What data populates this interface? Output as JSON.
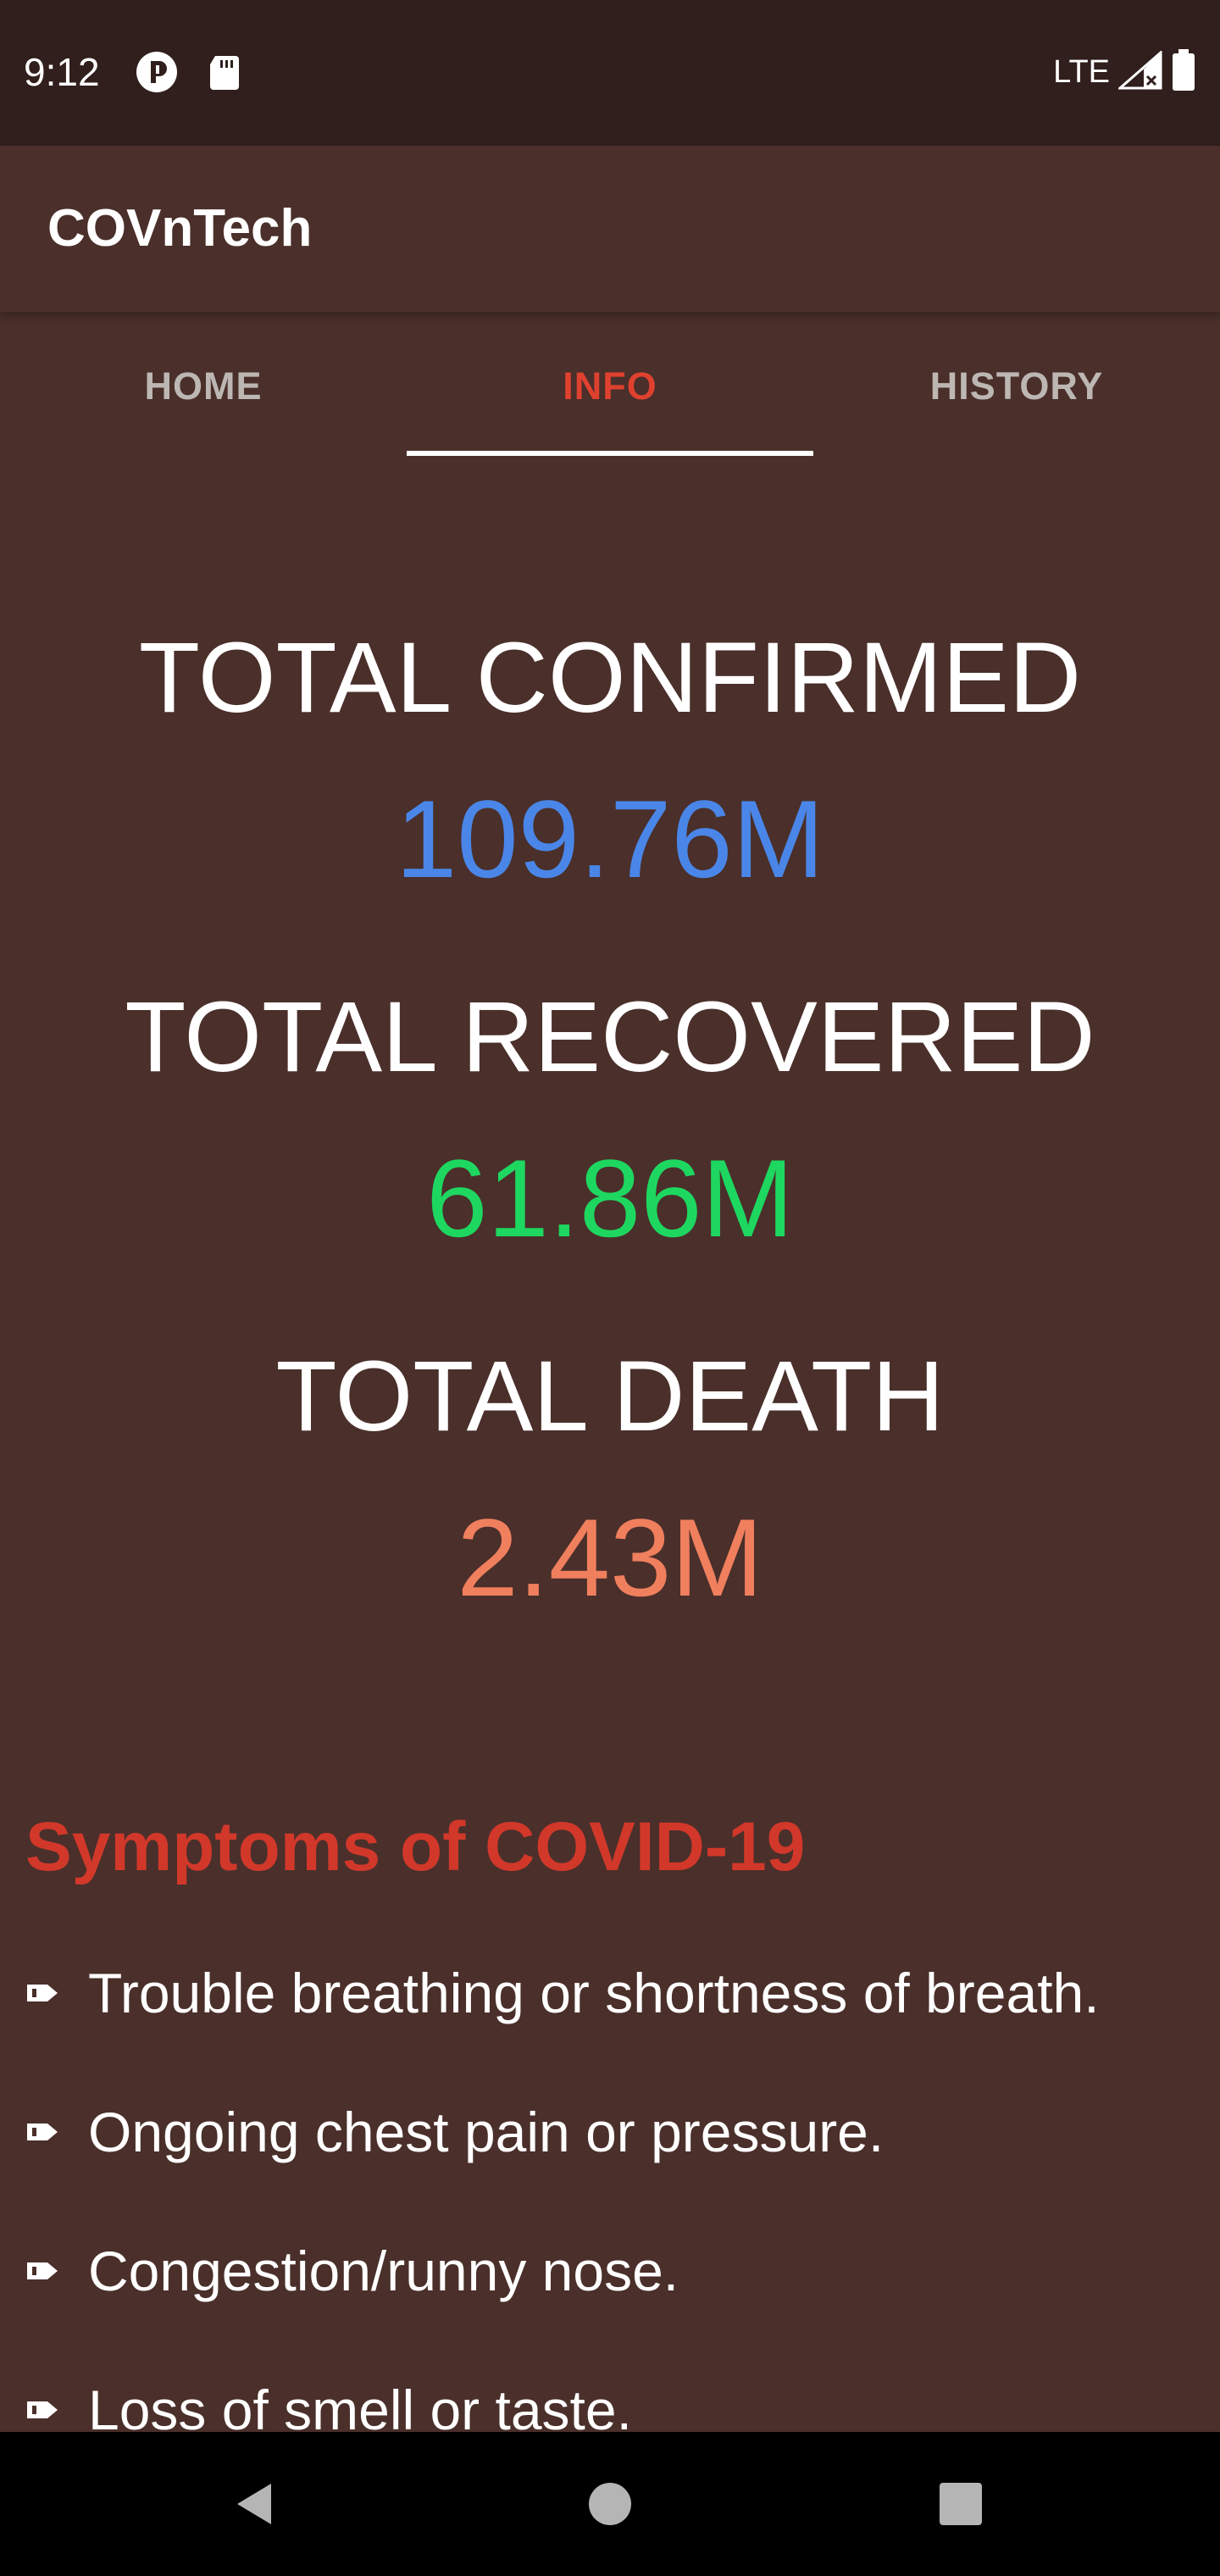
{
  "status_bar": {
    "time": "9:12",
    "network": "LTE",
    "icons": [
      "pocket-cast-icon",
      "sd-card-icon",
      "signal-icon",
      "battery-icon"
    ]
  },
  "app": {
    "title": "COVnTech"
  },
  "tabs": [
    {
      "label": "HOME",
      "active": false
    },
    {
      "label": "INFO",
      "active": true
    },
    {
      "label": "HISTORY",
      "active": false
    }
  ],
  "stats": {
    "confirmed": {
      "label": "TOTAL CONFIRMED",
      "value": "109.76M",
      "color": "#4a86e8"
    },
    "recovered": {
      "label": "TOTAL RECOVERED",
      "value": "61.86M",
      "color": "#1ed760"
    },
    "death": {
      "label": "TOTAL DEATH",
      "value": "2.43M",
      "color": "#f07f5e"
    }
  },
  "symptoms": {
    "heading": "Symptoms of COVID-19",
    "items": [
      "Trouble breathing or shortness of breath.",
      "Ongoing chest pain or pressure.",
      "Congestion/runny nose.",
      "Loss of smell or taste."
    ]
  },
  "colors": {
    "background": "#4a2f2a",
    "status_bar": "#301f1c",
    "accent": "#e0412f",
    "heading": "#d1382a"
  }
}
